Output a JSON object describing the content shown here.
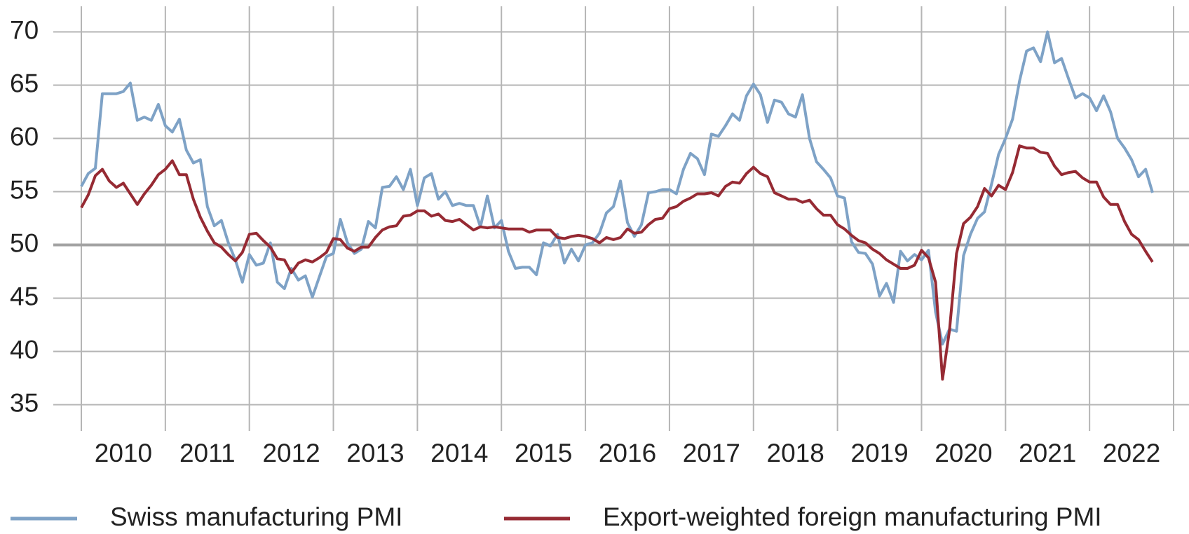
{
  "chart_data": {
    "type": "line",
    "x": [
      2010,
      2010.083,
      2010.167,
      2010.25,
      2010.333,
      2010.417,
      2010.5,
      2010.583,
      2010.667,
      2010.75,
      2010.833,
      2010.917,
      2011,
      2011.083,
      2011.167,
      2011.25,
      2011.333,
      2011.417,
      2011.5,
      2011.583,
      2011.667,
      2011.75,
      2011.833,
      2011.917,
      2012,
      2012.083,
      2012.167,
      2012.25,
      2012.333,
      2012.417,
      2012.5,
      2012.583,
      2012.667,
      2012.75,
      2012.833,
      2012.917,
      2013,
      2013.083,
      2013.167,
      2013.25,
      2013.333,
      2013.417,
      2013.5,
      2013.583,
      2013.667,
      2013.75,
      2013.833,
      2013.917,
      2014,
      2014.083,
      2014.167,
      2014.25,
      2014.333,
      2014.417,
      2014.5,
      2014.583,
      2014.667,
      2014.75,
      2014.833,
      2014.917,
      2015,
      2015.083,
      2015.167,
      2015.25,
      2015.333,
      2015.417,
      2015.5,
      2015.583,
      2015.667,
      2015.75,
      2015.833,
      2015.917,
      2016,
      2016.083,
      2016.167,
      2016.25,
      2016.333,
      2016.417,
      2016.5,
      2016.583,
      2016.667,
      2016.75,
      2016.833,
      2016.917,
      2017,
      2017.083,
      2017.167,
      2017.25,
      2017.333,
      2017.417,
      2017.5,
      2017.583,
      2017.667,
      2017.75,
      2017.833,
      2017.917,
      2018,
      2018.083,
      2018.167,
      2018.25,
      2018.333,
      2018.417,
      2018.5,
      2018.583,
      2018.667,
      2018.75,
      2018.833,
      2018.917,
      2019,
      2019.083,
      2019.167,
      2019.25,
      2019.333,
      2019.417,
      2019.5,
      2019.583,
      2019.667,
      2019.75,
      2019.833,
      2019.917,
      2020,
      2020.083,
      2020.167,
      2020.25,
      2020.333,
      2020.417,
      2020.5,
      2020.583,
      2020.667,
      2020.75,
      2020.833,
      2020.917,
      2021,
      2021.083,
      2021.167,
      2021.25,
      2021.333,
      2021.417,
      2021.5,
      2021.583,
      2021.667,
      2021.75,
      2021.833,
      2021.917,
      2022,
      2022.083,
      2022.167,
      2022.25,
      2022.333,
      2022.417,
      2022.5,
      2022.583,
      2022.667,
      2022.75
    ],
    "series": [
      {
        "name": "Swiss manufacturing PMI",
        "color": "#7ea2c6",
        "values": [
          55.5,
          56.7,
          57.2,
          64.2,
          64.2,
          64.2,
          64.4,
          65.2,
          61.7,
          62.0,
          61.7,
          63.2,
          61.2,
          60.6,
          61.8,
          58.9,
          57.7,
          58.0,
          53.6,
          51.8,
          52.3,
          50.2,
          48.6,
          46.5,
          49.1,
          48.1,
          48.3,
          50.2,
          46.5,
          45.9,
          47.8,
          46.7,
          47.1,
          45.1,
          47.0,
          48.9,
          49.2,
          52.4,
          50.2,
          49.2,
          49.6,
          52.2,
          51.6,
          55.4,
          55.5,
          56.4,
          55.2,
          57.1,
          53.7,
          56.3,
          56.7,
          54.3,
          55.0,
          53.7,
          53.9,
          53.7,
          53.7,
          51.7,
          54.6,
          51.6,
          52.3,
          49.4,
          47.8,
          47.9,
          47.9,
          47.2,
          50.2,
          49.9,
          51.0,
          48.3,
          49.6,
          48.5,
          50.0,
          50.2,
          51.1,
          53.0,
          53.6,
          56.0,
          52.1,
          50.8,
          51.9,
          54.9,
          55.0,
          55.2,
          55.2,
          54.8,
          57.1,
          58.6,
          58.1,
          56.6,
          60.4,
          60.2,
          61.2,
          62.3,
          61.7,
          64.0,
          65.1,
          64.1,
          61.5,
          63.6,
          63.4,
          62.3,
          62.0,
          64.1,
          60.0,
          57.8,
          57.1,
          56.3,
          54.6,
          54.4,
          50.3,
          49.3,
          49.2,
          48.2,
          45.2,
          46.4,
          44.6,
          49.4,
          48.5,
          49.1,
          48.6,
          49.5,
          43.7,
          40.7,
          42.1,
          41.9,
          49.0,
          51.0,
          52.5,
          53.1,
          55.7,
          58.5,
          60.0,
          61.8,
          65.4,
          68.2,
          68.5,
          67.2,
          70.0,
          67.1,
          67.5,
          65.6,
          63.8,
          64.2,
          63.8,
          62.6,
          64.0,
          62.5,
          60.0,
          59.1,
          58.0,
          56.4,
          57.1,
          54.9
        ]
      },
      {
        "name": "Export-weighted foreign manufacturing PMI",
        "color": "#962a33",
        "values": [
          53.5,
          54.7,
          56.5,
          57.1,
          56.0,
          55.4,
          55.8,
          54.8,
          53.8,
          54.8,
          55.6,
          56.6,
          57.1,
          57.9,
          56.6,
          56.6,
          54.3,
          52.6,
          51.3,
          50.2,
          49.8,
          49.1,
          48.5,
          49.3,
          51.0,
          51.1,
          50.4,
          49.8,
          48.7,
          48.6,
          47.4,
          48.3,
          48.6,
          48.4,
          48.8,
          49.3,
          50.6,
          50.5,
          49.7,
          49.4,
          49.8,
          49.8,
          50.7,
          51.4,
          51.7,
          51.8,
          52.7,
          52.8,
          53.2,
          53.2,
          52.7,
          52.9,
          52.3,
          52.2,
          52.4,
          51.9,
          51.4,
          51.7,
          51.6,
          51.7,
          51.6,
          51.5,
          51.5,
          51.5,
          51.2,
          51.4,
          51.4,
          51.4,
          50.7,
          50.6,
          50.8,
          50.9,
          50.8,
          50.6,
          50.2,
          50.7,
          50.5,
          50.7,
          51.5,
          51.1,
          51.2,
          51.9,
          52.4,
          52.5,
          53.4,
          53.6,
          54.1,
          54.4,
          54.8,
          54.8,
          54.9,
          54.6,
          55.5,
          55.9,
          55.8,
          56.7,
          57.3,
          56.7,
          56.4,
          54.9,
          54.6,
          54.3,
          54.3,
          54.0,
          54.2,
          53.4,
          52.8,
          52.8,
          51.9,
          51.5,
          50.9,
          50.4,
          50.2,
          49.6,
          49.2,
          48.6,
          48.2,
          47.8,
          47.8,
          48.1,
          49.5,
          48.8,
          46.5,
          37.4,
          42.0,
          49.2,
          52.0,
          52.6,
          53.6,
          55.3,
          54.6,
          55.6,
          55.2,
          56.8,
          59.3,
          59.1,
          59.1,
          58.7,
          58.6,
          57.4,
          56.6,
          56.8,
          56.9,
          56.3,
          55.9,
          55.9,
          54.5,
          53.8,
          53.8,
          52.2,
          51.0,
          50.5,
          49.4,
          48.4
        ]
      }
    ],
    "xlim": [
      2010,
      2023
    ],
    "xticks": [
      {
        "value": 2010.5,
        "label": "2010"
      },
      {
        "value": 2011.5,
        "label": "2011"
      },
      {
        "value": 2012.5,
        "label": "2012"
      },
      {
        "value": 2013.5,
        "label": "2013"
      },
      {
        "value": 2014.5,
        "label": "2014"
      },
      {
        "value": 2015.5,
        "label": "2015"
      },
      {
        "value": 2016.5,
        "label": "2016"
      },
      {
        "value": 2017.5,
        "label": "2017"
      },
      {
        "value": 2018.5,
        "label": "2018"
      },
      {
        "value": 2019.5,
        "label": "2019"
      },
      {
        "value": 2020.5,
        "label": "2020"
      },
      {
        "value": 2021.5,
        "label": "2021"
      },
      {
        "value": 2022.5,
        "label": "2022"
      }
    ],
    "xgrid": [
      2010,
      2011,
      2012,
      2013,
      2014,
      2015,
      2016,
      2017,
      2018,
      2019,
      2020,
      2021,
      2022,
      2023
    ],
    "ylim": [
      32.8,
      72.4
    ],
    "yticks": [
      35,
      40,
      45,
      50,
      55,
      60,
      65,
      70
    ],
    "reference_line": 50,
    "grid": true,
    "legend": "bottom"
  }
}
